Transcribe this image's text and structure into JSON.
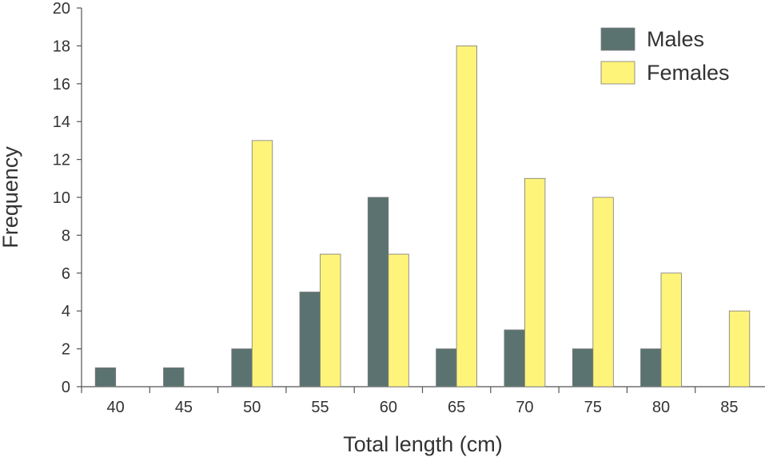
{
  "chart_data": {
    "type": "bar",
    "title": "",
    "xlabel": "Total length (cm)",
    "ylabel": "Frequency",
    "categories": [
      "40",
      "45",
      "50",
      "55",
      "60",
      "65",
      "70",
      "75",
      "80",
      "85"
    ],
    "ylim": [
      0,
      20
    ],
    "yticks": [
      "0",
      "2",
      "4",
      "6",
      "8",
      "10",
      "12",
      "14",
      "16",
      "18",
      "20"
    ],
    "grid": false,
    "legend_position": "top-right",
    "series": [
      {
        "name": "Males",
        "color": "#5b7370",
        "values": [
          1,
          1,
          2,
          5,
          10,
          2,
          3,
          2,
          2,
          0
        ]
      },
      {
        "name": "Females",
        "color": "#fff47a",
        "values": [
          0,
          0,
          13,
          7,
          7,
          18,
          11,
          10,
          6,
          4
        ]
      }
    ]
  }
}
